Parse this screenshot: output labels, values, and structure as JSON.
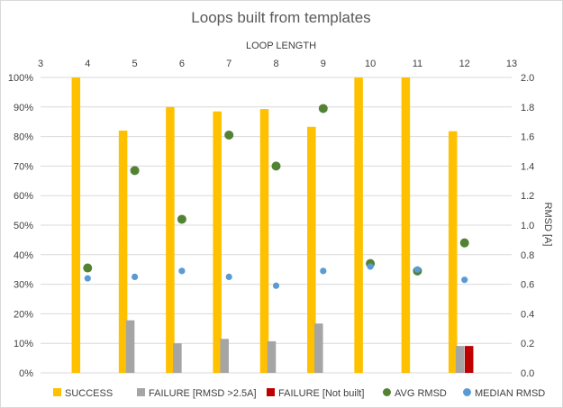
{
  "chart_data": {
    "type": "bar",
    "title": "Loops built from templates",
    "x_axis_top_label": "LOOP LENGTH",
    "y_axis_right_label": "RMSD [A]",
    "x_range": [
      3,
      13
    ],
    "x_ticks": [
      "3",
      "4",
      "5",
      "6",
      "7",
      "8",
      "9",
      "10",
      "11",
      "12",
      "13"
    ],
    "categories": [
      4,
      5,
      6,
      7,
      8,
      9,
      10,
      11,
      12
    ],
    "y_left_range": [
      0,
      100
    ],
    "y_left_ticks": [
      "0%",
      "10%",
      "20%",
      "30%",
      "40%",
      "50%",
      "60%",
      "70%",
      "80%",
      "90%",
      "100%"
    ],
    "y_right_range": [
      0,
      2.0
    ],
    "y_right_ticks": [
      "0.0",
      "0.2",
      "0.4",
      "0.6",
      "0.8",
      "1.0",
      "1.2",
      "1.4",
      "1.6",
      "1.8",
      "2.0"
    ],
    "grid": "horizontal",
    "legend_position": "bottom",
    "series": [
      {
        "name": "SUCCESS",
        "kind": "bar",
        "axis": "left",
        "color": "#ffc000",
        "values": [
          100,
          82,
          90,
          88.5,
          89.3,
          83.3,
          100,
          100,
          81.8
        ]
      },
      {
        "name": "FAILURE [RMSD >2.5A]",
        "kind": "bar",
        "axis": "left",
        "color": "#a5a5a5",
        "values": [
          0,
          17.8,
          10,
          11.5,
          10.7,
          16.7,
          0,
          0,
          9.1
        ]
      },
      {
        "name": "FAILURE [Not built]",
        "kind": "bar",
        "axis": "left",
        "color": "#c00000",
        "values": [
          0,
          0,
          0,
          0,
          0,
          0,
          0,
          0,
          9.1
        ]
      },
      {
        "name": "AVG RMSD",
        "kind": "scatter",
        "axis": "right",
        "color": "#548235",
        "values": [
          0.71,
          1.37,
          1.04,
          1.61,
          1.4,
          1.79,
          0.74,
          0.69,
          0.88
        ]
      },
      {
        "name": "MEDIAN RMSD",
        "kind": "scatter",
        "axis": "right",
        "color": "#5b9bd5",
        "values": [
          0.64,
          0.65,
          0.69,
          0.65,
          0.59,
          0.69,
          0.72,
          0.7,
          0.63
        ]
      }
    ]
  }
}
